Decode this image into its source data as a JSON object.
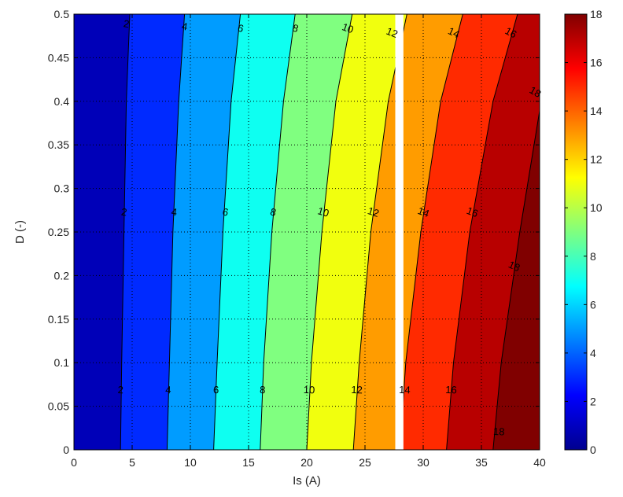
{
  "chart_data": {
    "type": "heatmap",
    "subtype": "filled-contour",
    "xlabel": "Is (A)",
    "ylabel": "D (-)",
    "xlim": [
      0,
      40
    ],
    "ylim": [
      0,
      0.5
    ],
    "xticks": [
      0,
      5,
      10,
      15,
      20,
      25,
      30,
      35,
      40
    ],
    "yticks": [
      0,
      0.05,
      0.1,
      0.15,
      0.2,
      0.25,
      0.3,
      0.35,
      0.4,
      0.45,
      0.5
    ],
    "grid": true,
    "colormap": "jet",
    "colorbar": {
      "position": "right",
      "range": [
        0,
        18
      ],
      "ticks": [
        0,
        2,
        4,
        6,
        8,
        10,
        12,
        14,
        16,
        18
      ]
    },
    "contour_levels": [
      2,
      4,
      6,
      8,
      10,
      12,
      14,
      16,
      18
    ],
    "contour_lines": [
      {
        "level": 2,
        "points": [
          [
            4.0,
            0
          ],
          [
            4.1,
            0.1
          ],
          [
            4.3,
            0.25
          ],
          [
            4.5,
            0.4
          ],
          [
            4.8,
            0.5
          ]
        ]
      },
      {
        "level": 4,
        "points": [
          [
            8.0,
            0
          ],
          [
            8.2,
            0.1
          ],
          [
            8.5,
            0.25
          ],
          [
            9.0,
            0.4
          ],
          [
            9.5,
            0.5
          ]
        ]
      },
      {
        "level": 6,
        "points": [
          [
            12.0,
            0
          ],
          [
            12.3,
            0.1
          ],
          [
            12.8,
            0.25
          ],
          [
            13.5,
            0.4
          ],
          [
            14.3,
            0.5
          ]
        ]
      },
      {
        "level": 8,
        "points": [
          [
            16.0,
            0
          ],
          [
            16.3,
            0.1
          ],
          [
            17.0,
            0.25
          ],
          [
            18.0,
            0.4
          ],
          [
            19.0,
            0.5
          ]
        ]
      },
      {
        "level": 10,
        "points": [
          [
            20.0,
            0
          ],
          [
            20.4,
            0.1
          ],
          [
            21.3,
            0.25
          ],
          [
            22.5,
            0.4
          ],
          [
            23.9,
            0.5
          ]
        ]
      },
      {
        "level": 12,
        "points": [
          [
            24.0,
            0
          ],
          [
            24.5,
            0.1
          ],
          [
            25.5,
            0.25
          ],
          [
            27.0,
            0.4
          ],
          [
            28.6,
            0.5
          ]
        ]
      },
      {
        "level": 14,
        "points": [
          [
            28.0,
            0
          ],
          [
            28.5,
            0.1
          ],
          [
            29.8,
            0.25
          ],
          [
            31.5,
            0.4
          ],
          [
            33.4,
            0.5
          ]
        ]
      },
      {
        "level": 16,
        "points": [
          [
            32.0,
            0
          ],
          [
            32.6,
            0.1
          ],
          [
            34.0,
            0.25
          ],
          [
            36.0,
            0.4
          ],
          [
            38.1,
            0.5
          ]
        ]
      },
      {
        "level": 18,
        "points": [
          [
            36.0,
            0
          ],
          [
            36.7,
            0.1
          ],
          [
            38.3,
            0.25
          ],
          [
            40.0,
            0.389
          ]
        ]
      }
    ],
    "discontinuity_gap": {
      "x_range": [
        27.6,
        28.3
      ]
    },
    "contour_labels": [
      {
        "text": "2",
        "x": 4.5,
        "y": 0.488,
        "rotation": -80
      },
      {
        "text": "4",
        "x": 9.5,
        "y": 0.485,
        "rotation": -80
      },
      {
        "text": "6",
        "x": 14.3,
        "y": 0.483,
        "rotation": -75
      },
      {
        "text": "8",
        "x": 19.0,
        "y": 0.483,
        "rotation": -72
      },
      {
        "text": "10",
        "x": 23.5,
        "y": 0.483,
        "rotation": -70
      },
      {
        "text": "12",
        "x": 27.3,
        "y": 0.478,
        "rotation": -68
      },
      {
        "text": "14",
        "x": 32.6,
        "y": 0.478,
        "rotation": -65
      },
      {
        "text": "16",
        "x": 37.5,
        "y": 0.478,
        "rotation": -62
      },
      {
        "text": "18",
        "x": 40.0,
        "y": 0.41,
        "rotation": -60
      },
      {
        "text": "2",
        "x": 4.3,
        "y": 0.272,
        "rotation": -82
      },
      {
        "text": "4",
        "x": 8.6,
        "y": 0.272,
        "rotation": -82
      },
      {
        "text": "6",
        "x": 13.0,
        "y": 0.272,
        "rotation": -78
      },
      {
        "text": "8",
        "x": 17.1,
        "y": 0.272,
        "rotation": -76
      },
      {
        "text": "10",
        "x": 21.4,
        "y": 0.272,
        "rotation": -74
      },
      {
        "text": "12",
        "x": 25.7,
        "y": 0.272,
        "rotation": -72
      },
      {
        "text": "14",
        "x": 30.0,
        "y": 0.272,
        "rotation": -70
      },
      {
        "text": "16",
        "x": 34.2,
        "y": 0.272,
        "rotation": -68
      },
      {
        "text": "18",
        "x": 37.8,
        "y": 0.21,
        "rotation": -66
      },
      {
        "text": "2",
        "x": 4.0,
        "y": 0.068,
        "rotation": -88
      },
      {
        "text": "4",
        "x": 8.1,
        "y": 0.068,
        "rotation": -88
      },
      {
        "text": "6",
        "x": 12.2,
        "y": 0.068,
        "rotation": -88
      },
      {
        "text": "8",
        "x": 16.2,
        "y": 0.068,
        "rotation": -88
      },
      {
        "text": "10",
        "x": 20.2,
        "y": 0.068,
        "rotation": -88
      },
      {
        "text": "12",
        "x": 24.3,
        "y": 0.068,
        "rotation": -88
      },
      {
        "text": "14",
        "x": 28.4,
        "y": 0.068,
        "rotation": -88
      },
      {
        "text": "16",
        "x": 32.4,
        "y": 0.068,
        "rotation": -88
      },
      {
        "text": "18",
        "x": 36.5,
        "y": 0.02,
        "rotation": -88
      }
    ]
  }
}
